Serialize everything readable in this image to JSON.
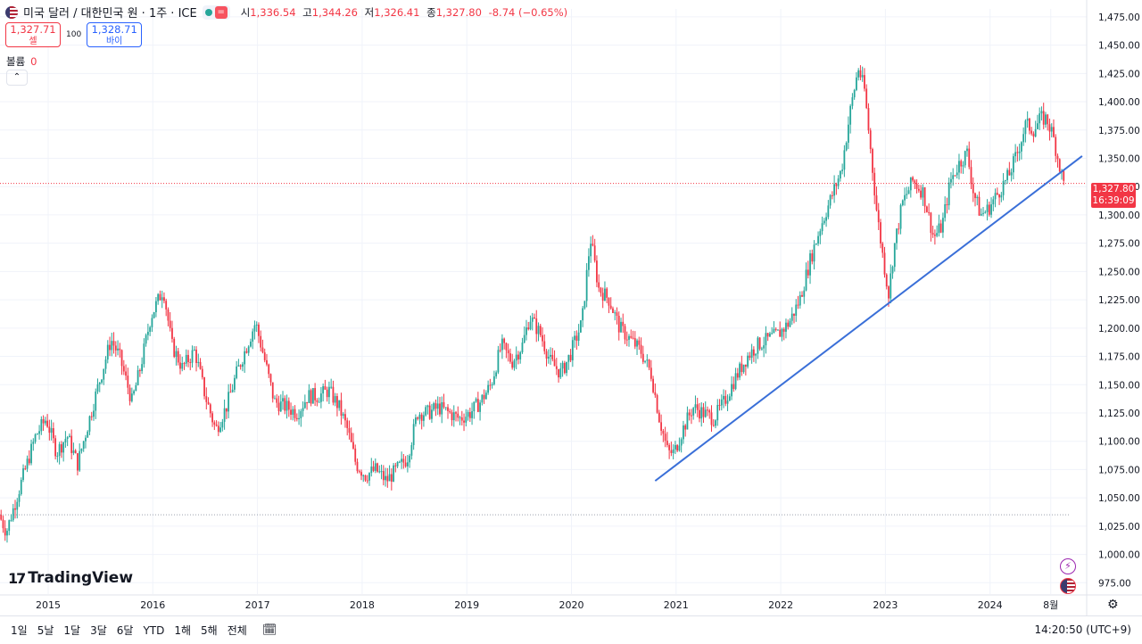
{
  "header": {
    "symbol_title": "미국 달러 / 대한민국 원 · 1주 · ICE",
    "ohlc": [
      {
        "label": "시",
        "value": "1,336.54"
      },
      {
        "label": "고",
        "value": "1,344.26"
      },
      {
        "label": "저",
        "value": "1,326.41"
      },
      {
        "label": "종",
        "value": "1,327.80"
      }
    ],
    "change": "-8.74 (−0.65%)",
    "status_icon": "dot-green",
    "market_icon": "="
  },
  "trade": {
    "sell_price": "1,327.71",
    "sell_label": "셀",
    "spread": "100",
    "buy_price": "1,328.71",
    "buy_label": "바이"
  },
  "volume": {
    "label": "볼륨",
    "value": "0"
  },
  "price_badge": {
    "price": "1,327.80",
    "countdown": "16:39:09"
  },
  "logo_text": "TradingView",
  "logo_mark": "17",
  "bottom": {
    "ranges": [
      "1일",
      "5날",
      "1달",
      "3달",
      "6달",
      "YTD",
      "1해",
      "5해",
      "전체"
    ],
    "clock": "14:20:50 (UTC+9)"
  },
  "colors": {
    "up": "#26a69a",
    "down": "#f23645",
    "trendline": "#3a6fd8",
    "accent": "#2962ff"
  },
  "chart_data": {
    "type": "candlestick",
    "series_name": "미국 달러 / 대한민국 원",
    "interval": "1주",
    "x_range": [
      2014.55,
      2024.75
    ],
    "ylim": [
      965,
      1482
    ],
    "y_ticks": [
      "975.00",
      "1,000.00",
      "1,025.00",
      "1,050.00",
      "1,075.00",
      "1,100.00",
      "1,125.00",
      "1,150.00",
      "1,175.00",
      "1,200.00",
      "1,225.00",
      "1,250.00",
      "1,275.00",
      "1,300.00",
      "1,325.00",
      "1,350.00",
      "1,375.00",
      "1,400.00",
      "1,425.00",
      "1,450.00",
      "1,475.00"
    ],
    "y_tick_values": [
      975,
      1000,
      1025,
      1050,
      1075,
      1100,
      1125,
      1150,
      1175,
      1200,
      1225,
      1250,
      1275,
      1300,
      1325,
      1350,
      1375,
      1400,
      1425,
      1450,
      1475
    ],
    "x_ticks": [
      "2015",
      "2016",
      "2017",
      "2018",
      "2019",
      "2020",
      "2021",
      "2022",
      "2023",
      "2024",
      "8월"
    ],
    "x_tick_values": [
      2015.0,
      2016.0,
      2017.0,
      2018.0,
      2019.0,
      2020.0,
      2021.0,
      2022.0,
      2023.0,
      2024.0,
      2024.58
    ],
    "path": [
      [
        2014.55,
        1035
      ],
      [
        2014.62,
        1020
      ],
      [
        2014.75,
        1060
      ],
      [
        2014.9,
        1105
      ],
      [
        2015.0,
        1120
      ],
      [
        2015.1,
        1090
      ],
      [
        2015.2,
        1105
      ],
      [
        2015.3,
        1080
      ],
      [
        2015.4,
        1115
      ],
      [
        2015.5,
        1150
      ],
      [
        2015.62,
        1190
      ],
      [
        2015.7,
        1175
      ],
      [
        2015.82,
        1135
      ],
      [
        2015.9,
        1165
      ],
      [
        2016.0,
        1210
      ],
      [
        2016.12,
        1235
      ],
      [
        2016.2,
        1185
      ],
      [
        2016.3,
        1165
      ],
      [
        2016.42,
        1180
      ],
      [
        2016.52,
        1140
      ],
      [
        2016.62,
        1110
      ],
      [
        2016.72,
        1130
      ],
      [
        2016.82,
        1160
      ],
      [
        2016.9,
        1180
      ],
      [
        2017.0,
        1205
      ],
      [
        2017.08,
        1175
      ],
      [
        2017.18,
        1135
      ],
      [
        2017.3,
        1130
      ],
      [
        2017.4,
        1125
      ],
      [
        2017.5,
        1140
      ],
      [
        2017.6,
        1140
      ],
      [
        2017.7,
        1145
      ],
      [
        2017.8,
        1130
      ],
      [
        2017.88,
        1110
      ],
      [
        2017.96,
        1080
      ],
      [
        2018.05,
        1070
      ],
      [
        2018.15,
        1075
      ],
      [
        2018.25,
        1065
      ],
      [
        2018.35,
        1075
      ],
      [
        2018.45,
        1085
      ],
      [
        2018.55,
        1125
      ],
      [
        2018.65,
        1125
      ],
      [
        2018.75,
        1130
      ],
      [
        2018.85,
        1125
      ],
      [
        2018.95,
        1120
      ],
      [
        2019.05,
        1125
      ],
      [
        2019.15,
        1135
      ],
      [
        2019.25,
        1150
      ],
      [
        2019.35,
        1185
      ],
      [
        2019.45,
        1170
      ],
      [
        2019.55,
        1185
      ],
      [
        2019.62,
        1210
      ],
      [
        2019.72,
        1195
      ],
      [
        2019.82,
        1170
      ],
      [
        2019.92,
        1160
      ],
      [
        2020.0,
        1175
      ],
      [
        2020.12,
        1205
      ],
      [
        2020.2,
        1280
      ],
      [
        2020.28,
        1235
      ],
      [
        2020.38,
        1225
      ],
      [
        2020.48,
        1200
      ],
      [
        2020.58,
        1190
      ],
      [
        2020.68,
        1180
      ],
      [
        2020.78,
        1160
      ],
      [
        2020.86,
        1120
      ],
      [
        2020.94,
        1090
      ],
      [
        2021.0,
        1090
      ],
      [
        2021.08,
        1110
      ],
      [
        2021.18,
        1130
      ],
      [
        2021.28,
        1125
      ],
      [
        2021.38,
        1120
      ],
      [
        2021.48,
        1135
      ],
      [
        2021.58,
        1155
      ],
      [
        2021.7,
        1175
      ],
      [
        2021.8,
        1185
      ],
      [
        2021.9,
        1190
      ],
      [
        2022.0,
        1195
      ],
      [
        2022.1,
        1205
      ],
      [
        2022.2,
        1225
      ],
      [
        2022.3,
        1260
      ],
      [
        2022.4,
        1290
      ],
      [
        2022.5,
        1315
      ],
      [
        2022.6,
        1340
      ],
      [
        2022.68,
        1390
      ],
      [
        2022.76,
        1430
      ],
      [
        2022.82,
        1410
      ],
      [
        2022.88,
        1355
      ],
      [
        2022.94,
        1300
      ],
      [
        2023.0,
        1260
      ],
      [
        2023.05,
        1230
      ],
      [
        2023.1,
        1270
      ],
      [
        2023.18,
        1310
      ],
      [
        2023.28,
        1330
      ],
      [
        2023.38,
        1320
      ],
      [
        2023.48,
        1280
      ],
      [
        2023.56,
        1290
      ],
      [
        2023.64,
        1330
      ],
      [
        2023.72,
        1345
      ],
      [
        2023.8,
        1355
      ],
      [
        2023.86,
        1320
      ],
      [
        2023.93,
        1300
      ],
      [
        2024.0,
        1305
      ],
      [
        2024.1,
        1320
      ],
      [
        2024.2,
        1335
      ],
      [
        2024.28,
        1355
      ],
      [
        2024.36,
        1380
      ],
      [
        2024.44,
        1375
      ],
      [
        2024.5,
        1385
      ],
      [
        2024.56,
        1385
      ],
      [
        2024.62,
        1370
      ],
      [
        2024.68,
        1345
      ],
      [
        2024.72,
        1328
      ]
    ],
    "trendline": {
      "from": [
        2020.8,
        1065
      ],
      "to": [
        2024.88,
        1352
      ]
    },
    "last_price": 1327.8,
    "dotted_levels": [
      1327.8,
      1035
    ]
  }
}
